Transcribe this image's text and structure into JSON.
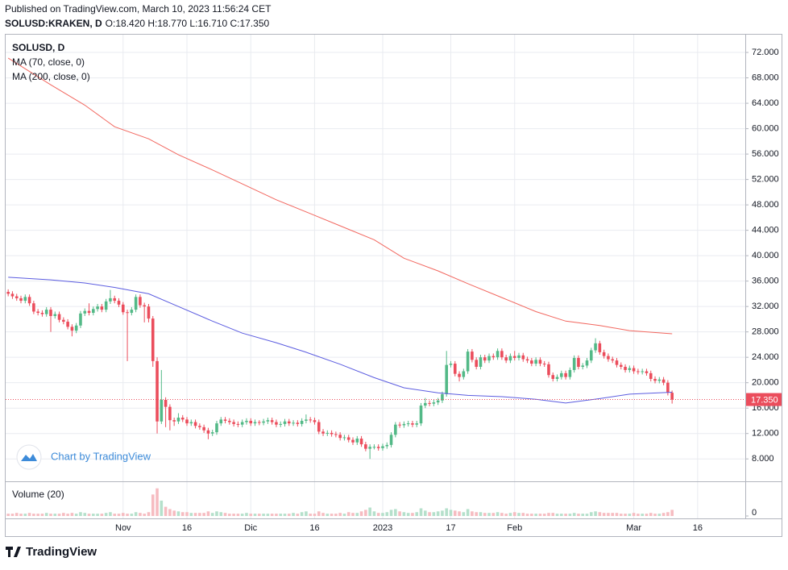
{
  "header": {
    "published": "Published on TradingView.com, March 10, 2023 11:56:24 CET",
    "symbol": "SOLUSD:KRAKEN, D",
    "ohlc": "O:18.420 H:18.770 L:16.710 C:17.350"
  },
  "chart_data": [
    {
      "type": "candlestick",
      "legend_title": "SOLUSD, D",
      "up_color": "#53b987",
      "down_color": "#eb4d5c",
      "open": [
        34.3,
        34.0,
        33.6,
        33.3,
        32.9,
        33.5,
        32.5,
        31.2,
        31.0,
        30.8,
        31.5,
        30.5,
        30.8,
        29.9,
        29.6,
        28.8,
        28.2,
        29.0,
        30.9,
        31.3,
        31.0,
        31.6,
        32.0,
        31.5,
        32.8,
        33.3,
        32.9,
        32.3,
        31.1,
        31.0,
        31.5,
        33.5,
        32.2,
        32.0,
        30.1,
        23.4,
        13.9,
        17.3,
        16.2,
        14.1,
        13.9,
        14.5,
        14.2,
        13.6,
        13.8,
        13.2,
        13.0,
        12.5,
        12.0,
        12.2,
        13.6,
        14.2,
        14.0,
        13.8,
        13.5,
        13.4,
        13.8,
        14.0,
        13.6,
        13.8,
        13.7,
        13.9,
        14.1,
        13.8,
        13.4,
        13.5,
        13.9,
        13.6,
        13.7,
        13.5,
        14.0,
        14.2,
        14.1,
        13.8,
        12.3,
        12.0,
        12.1,
        11.9,
        11.8,
        11.3,
        11.4,
        11.0,
        10.6,
        11.2,
        10.3,
        9.6,
        9.9,
        9.9,
        9.7,
        10.0,
        10.2,
        11.8,
        13.4,
        13.3,
        13.5,
        13.6,
        13.4,
        13.6,
        16.4,
        16.8,
        16.7,
        16.9,
        17.2,
        18.2,
        22.8,
        23.0,
        21.4,
        20.9,
        21.8,
        24.9,
        23.6,
        22.5,
        24.0,
        23.5,
        24.2,
        24.0,
        25.0,
        24.0,
        23.5,
        24.2,
        23.9,
        24.3,
        23.7,
        23.5,
        23.0,
        23.6,
        23.0,
        22.9,
        21.2,
        20.6,
        20.9,
        21.5,
        20.9,
        22.0,
        23.9,
        22.5,
        22.7,
        23.5,
        25.1,
        26.2,
        24.8,
        24.2,
        23.7,
        23.5,
        22.8,
        22.5,
        22.0,
        22.3,
        21.8,
        21.7,
        21.8,
        21.5,
        20.6,
        20.3,
        20.5,
        20.0,
        18.42
      ],
      "high": [
        34.7,
        34.4,
        34.0,
        33.7,
        33.9,
        33.9,
        32.9,
        31.6,
        31.4,
        31.9,
        31.9,
        31.2,
        31.2,
        30.3,
        30.0,
        29.2,
        29.4,
        31.3,
        31.7,
        32.5,
        32.0,
        32.4,
        32.4,
        33.2,
        34.6,
        33.7,
        33.3,
        32.7,
        31.5,
        31.9,
        33.9,
        33.9,
        32.6,
        32.4,
        30.5,
        24.0,
        22.0,
        17.7,
        16.6,
        14.5,
        15.2,
        14.9,
        14.6,
        14.2,
        14.2,
        13.6,
        13.4,
        12.9,
        12.6,
        14.0,
        14.6,
        14.6,
        14.4,
        14.2,
        13.9,
        14.2,
        14.4,
        14.4,
        14.2,
        14.1,
        14.3,
        14.5,
        14.5,
        14.2,
        13.9,
        14.3,
        14.3,
        14.1,
        14.1,
        14.4,
        15.0,
        14.6,
        14.5,
        14.2,
        12.7,
        12.5,
        12.5,
        12.3,
        12.2,
        11.8,
        11.8,
        11.4,
        11.6,
        11.6,
        10.7,
        10.3,
        10.3,
        10.3,
        10.4,
        10.6,
        12.2,
        13.8,
        13.8,
        13.9,
        14.0,
        14.0,
        14.0,
        16.8,
        17.6,
        17.2,
        17.3,
        17.6,
        18.6,
        25.0,
        23.4,
        23.4,
        21.8,
        22.2,
        25.3,
        25.3,
        24.0,
        24.4,
        24.4,
        24.6,
        24.6,
        25.4,
        25.4,
        24.4,
        24.6,
        25.0,
        24.7,
        24.7,
        24.1,
        23.9,
        24.0,
        24.0,
        23.4,
        23.3,
        21.6,
        21.3,
        21.9,
        21.9,
        22.4,
        24.3,
        24.3,
        23.1,
        23.9,
        25.5,
        27.0,
        26.6,
        25.2,
        24.6,
        24.1,
        23.9,
        23.2,
        22.9,
        22.7,
        22.7,
        22.2,
        22.2,
        22.2,
        21.9,
        21.0,
        20.9,
        20.9,
        20.4,
        18.77
      ],
      "low": [
        33.6,
        33.2,
        32.9,
        32.5,
        32.5,
        32.1,
        30.8,
        30.6,
        30.4,
        30.4,
        28.0,
        30.1,
        29.5,
        29.2,
        28.4,
        27.3,
        27.8,
        28.6,
        30.5,
        30.6,
        30.6,
        31.2,
        31.1,
        31.1,
        32.4,
        32.5,
        31.9,
        30.7,
        23.4,
        30.6,
        31.1,
        31.8,
        29.5,
        29.5,
        22.5,
        12.0,
        13.5,
        13.0,
        12.5,
        13.2,
        13.5,
        13.8,
        13.2,
        13.2,
        12.8,
        12.6,
        12.1,
        11.1,
        11.6,
        11.8,
        13.2,
        13.6,
        13.4,
        13.1,
        13.0,
        13.0,
        13.4,
        13.2,
        13.2,
        13.3,
        13.3,
        13.5,
        13.4,
        13.0,
        13.0,
        13.1,
        13.2,
        13.2,
        13.1,
        13.1,
        13.6,
        13.7,
        13.4,
        11.9,
        11.6,
        11.6,
        11.5,
        11.4,
        10.9,
        10.9,
        10.6,
        10.2,
        10.2,
        9.9,
        9.2,
        8.0,
        9.5,
        9.3,
        9.3,
        9.6,
        9.8,
        11.4,
        12.9,
        12.9,
        13.1,
        13.0,
        13.0,
        13.2,
        16.0,
        16.3,
        16.3,
        16.5,
        16.8,
        17.8,
        22.4,
        21.0,
        20.2,
        20.5,
        21.4,
        23.2,
        22.1,
        22.1,
        23.1,
        23.1,
        23.6,
        23.6,
        23.6,
        23.1,
        23.1,
        23.5,
        23.5,
        23.3,
        23.1,
        22.6,
        22.6,
        22.6,
        22.5,
        20.8,
        20.2,
        20.2,
        20.5,
        20.5,
        20.5,
        21.6,
        22.1,
        22.1,
        22.3,
        23.1,
        24.7,
        24.4,
        23.8,
        23.3,
        23.1,
        22.4,
        22.1,
        21.6,
        21.6,
        21.4,
        21.3,
        21.3,
        21.1,
        20.2,
        19.9,
        19.9,
        19.6,
        18.0,
        16.71
      ],
      "close": [
        34.0,
        33.6,
        33.3,
        32.9,
        33.5,
        32.5,
        31.2,
        31.0,
        30.8,
        31.5,
        30.5,
        30.8,
        29.9,
        29.6,
        28.8,
        28.2,
        29.0,
        30.9,
        31.3,
        31.0,
        31.6,
        32.0,
        31.5,
        32.8,
        33.3,
        32.9,
        32.3,
        31.1,
        31.0,
        31.5,
        33.5,
        32.2,
        32.0,
        30.1,
        23.4,
        13.9,
        17.3,
        16.2,
        14.1,
        13.9,
        14.5,
        14.2,
        13.6,
        13.8,
        13.2,
        13.0,
        12.5,
        12.0,
        12.2,
        13.6,
        14.2,
        14.0,
        13.8,
        13.5,
        13.4,
        13.8,
        14.0,
        13.6,
        13.8,
        13.7,
        13.9,
        14.1,
        13.8,
        13.4,
        13.5,
        13.9,
        13.6,
        13.7,
        13.5,
        14.0,
        14.2,
        14.1,
        13.8,
        12.3,
        12.0,
        12.1,
        11.9,
        11.8,
        11.3,
        11.4,
        11.0,
        10.6,
        11.2,
        10.3,
        9.6,
        9.9,
        9.9,
        9.7,
        10.0,
        10.2,
        11.8,
        13.4,
        13.3,
        13.5,
        13.6,
        13.4,
        13.6,
        16.4,
        16.8,
        16.7,
        16.9,
        17.2,
        18.2,
        22.8,
        23.0,
        21.4,
        20.9,
        21.8,
        24.9,
        23.6,
        22.5,
        24.0,
        23.5,
        24.2,
        24.0,
        25.0,
        24.0,
        23.5,
        24.2,
        23.9,
        24.3,
        23.7,
        23.5,
        23.0,
        23.6,
        23.0,
        22.9,
        21.2,
        20.6,
        20.9,
        21.5,
        20.9,
        22.0,
        23.9,
        22.5,
        22.7,
        23.5,
        25.1,
        26.2,
        24.8,
        24.2,
        23.7,
        23.5,
        22.8,
        22.5,
        22.0,
        22.3,
        21.8,
        21.7,
        21.8,
        21.5,
        20.6,
        20.3,
        20.5,
        20.0,
        18.42,
        17.35
      ],
      "series": [
        {
          "name": "MA (70, close, 0)",
          "color": "#5b5ce0",
          "x": [
            0,
            10,
            18,
            25,
            33,
            40,
            48,
            55,
            63,
            70,
            78,
            86,
            93,
            101,
            108,
            116,
            124,
            131,
            139,
            146,
            156
          ],
          "values": [
            36.6,
            36.2,
            35.7,
            35.0,
            34.0,
            32.0,
            29.7,
            27.8,
            26.3,
            24.8,
            22.9,
            20.8,
            19.2,
            18.4,
            18.0,
            17.8,
            17.4,
            16.8,
            17.5,
            18.2,
            18.5
          ]
        },
        {
          "name": "MA (200, close, 0)",
          "color": "#f2675f",
          "x": [
            0,
            10,
            18,
            25,
            33,
            40,
            48,
            55,
            63,
            70,
            78,
            86,
            93,
            101,
            108,
            116,
            124,
            131,
            139,
            146,
            156
          ],
          "values": [
            71.1,
            66.9,
            63.7,
            60.3,
            58.4,
            55.9,
            53.5,
            51.3,
            48.8,
            46.9,
            44.7,
            42.5,
            39.6,
            37.6,
            35.6,
            33.4,
            31.2,
            29.7,
            29.0,
            28.2,
            27.7
          ]
        }
      ],
      "xlim": [
        -0.6,
        173.2
      ],
      "xticks": [
        {
          "value": 27,
          "label": "Nov"
        },
        {
          "value": 42,
          "label": "16"
        },
        {
          "value": 57,
          "label": "Dic"
        },
        {
          "value": 72,
          "label": "16"
        },
        {
          "value": 88,
          "label": "2023"
        },
        {
          "value": 104,
          "label": "17"
        },
        {
          "value": 119,
          "label": "Feb"
        },
        {
          "value": 147,
          "label": "Mar"
        },
        {
          "value": 162,
          "label": "16"
        }
      ],
      "ylim": [
        4.6,
        74.8
      ],
      "yticks": [
        {
          "value": 8,
          "label": "8.000"
        },
        {
          "value": 12,
          "label": "12.000"
        },
        {
          "value": 16,
          "label": "16.000"
        },
        {
          "value": 20,
          "label": "20.000"
        },
        {
          "value": 24,
          "label": "24.000"
        },
        {
          "value": 28,
          "label": "28.000"
        },
        {
          "value": 32,
          "label": "32.000"
        },
        {
          "value": 36,
          "label": "36.000"
        },
        {
          "value": 40,
          "label": "40.000"
        },
        {
          "value": 44,
          "label": "44.000"
        },
        {
          "value": 48,
          "label": "48.000"
        },
        {
          "value": 52,
          "label": "52.000"
        },
        {
          "value": 56,
          "label": "56.000"
        },
        {
          "value": 60,
          "label": "60.000"
        },
        {
          "value": 64,
          "label": "64.000"
        },
        {
          "value": 68,
          "label": "68.000"
        },
        {
          "value": 72,
          "label": "72.000"
        }
      ],
      "grid": true,
      "last_price": {
        "value": 17.35,
        "label": "17.350"
      }
    },
    {
      "type": "bar",
      "title": "Volume (20)",
      "up_color": "#b5e0cb",
      "down_color": "#f6bcc1",
      "values": [
        3,
        3,
        4,
        3,
        3,
        4,
        3,
        3,
        3,
        4,
        3,
        3,
        3,
        4,
        3,
        4,
        3,
        5,
        4,
        3,
        3,
        3,
        3,
        4,
        5,
        3,
        3,
        4,
        3,
        3,
        5,
        4,
        3,
        5,
        28,
        36,
        20,
        12,
        9,
        7,
        6,
        5,
        5,
        4,
        4,
        4,
        4,
        6,
        4,
        6,
        5,
        4,
        3,
        3,
        3,
        3,
        4,
        3,
        3,
        3,
        3,
        3,
        3,
        3,
        3,
        3,
        3,
        4,
        3,
        5,
        6,
        3,
        3,
        6,
        4,
        3,
        3,
        3,
        4,
        3,
        5,
        4,
        4,
        6,
        8,
        11,
        6,
        4,
        4,
        5,
        8,
        9,
        6,
        5,
        4,
        4,
        5,
        10,
        7,
        5,
        5,
        6,
        7,
        10,
        8,
        7,
        6,
        5,
        9,
        6,
        5,
        5,
        4,
        4,
        4,
        5,
        4,
        3,
        4,
        5,
        4,
        4,
        3,
        3,
        3,
        3,
        3,
        4,
        4,
        3,
        3,
        3,
        3,
        4,
        3,
        3,
        3,
        5,
        6,
        5,
        4,
        4,
        4,
        4,
        3,
        3,
        3,
        4,
        3,
        3,
        3,
        4,
        3,
        3,
        4,
        5,
        8
      ],
      "ylim": [
        0,
        42
      ],
      "yticks": [
        0
      ]
    }
  ],
  "watermark": "Chart by TradingView",
  "footer": "TradingView"
}
